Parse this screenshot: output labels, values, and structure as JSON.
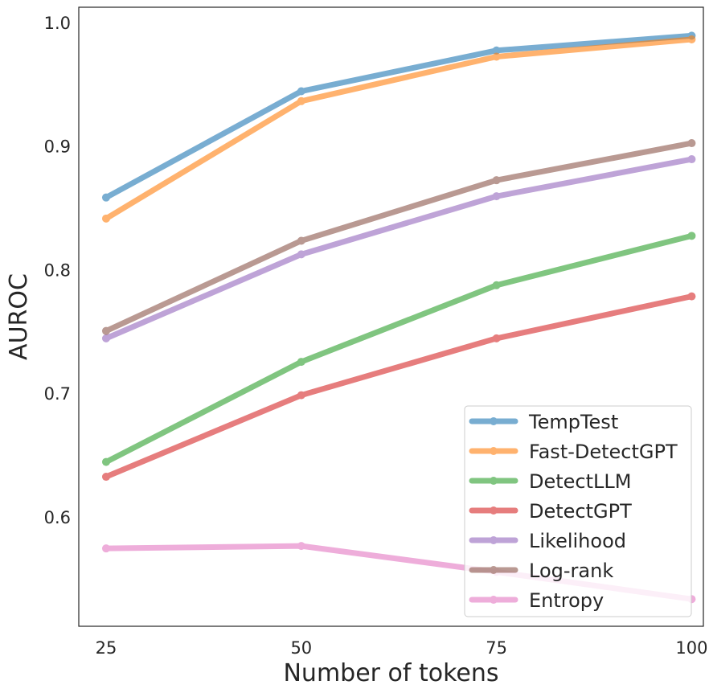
{
  "chart_data": {
    "type": "line",
    "title": "",
    "xlabel": "Number of tokens",
    "ylabel": "AUROC",
    "x": [
      25,
      50,
      75,
      100
    ],
    "xticks": [
      "25",
      "50",
      "75",
      "100"
    ],
    "yticks": [
      "0.6",
      "0.7",
      "0.8",
      "0.9",
      "1.0"
    ],
    "xlim": [
      21.5,
      101.5
    ],
    "ylim": [
      0.512,
      1.013
    ],
    "legend_position": "lower right",
    "grid": false,
    "series": [
      {
        "name": "TempTest",
        "color": "#1f77b4",
        "values": [
          0.859,
          0.945,
          0.978,
          0.99
        ]
      },
      {
        "name": "Fast-DetectGPT",
        "color": "#ff7f0e",
        "values": [
          0.842,
          0.937,
          0.973,
          0.987
        ]
      },
      {
        "name": "DetectLLM",
        "color": "#2ca02c",
        "values": [
          0.645,
          0.726,
          0.788,
          0.828
        ]
      },
      {
        "name": "DetectGPT",
        "color": "#d62728",
        "values": [
          0.633,
          0.699,
          0.745,
          0.779
        ]
      },
      {
        "name": "Likelihood",
        "color": "#9467bd",
        "values": [
          0.745,
          0.813,
          0.86,
          0.89
        ]
      },
      {
        "name": "Log-rank",
        "color": "#8c564b",
        "values": [
          0.751,
          0.824,
          0.873,
          0.903
        ]
      },
      {
        "name": "Entropy",
        "color": "#e377c2",
        "values": [
          0.575,
          0.577,
          0.556,
          0.534
        ]
      }
    ]
  }
}
